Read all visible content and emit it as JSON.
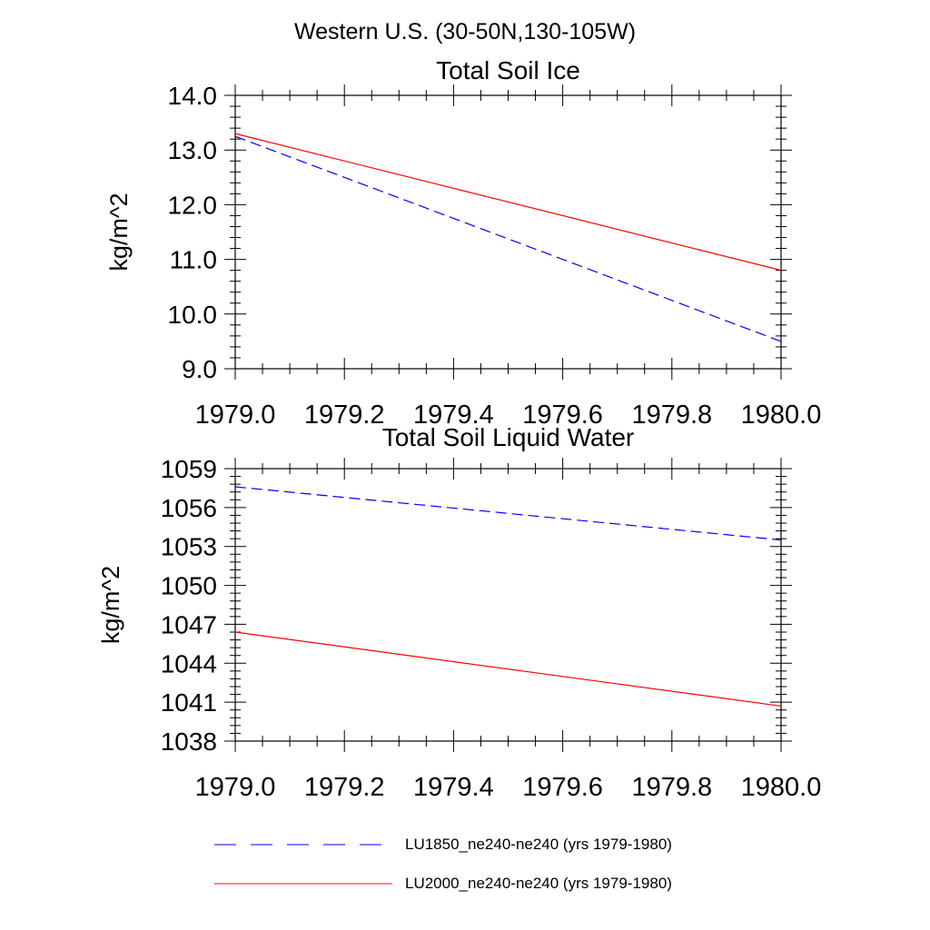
{
  "figure_title": "Western U.S. (30-50N,130-105W)",
  "colors": {
    "series_1850": "#0000ff",
    "series_2000": "#ff0000",
    "axes": "#000000"
  },
  "legend": {
    "placement": "bottom",
    "entries": [
      {
        "label": "LU1850_ne240-ne240 (yrs 1979-1980)",
        "color": "#0000ff",
        "style": "dashed"
      },
      {
        "label": "LU2000_ne240-ne240 (yrs 1979-1980)",
        "color": "#ff0000",
        "style": "solid"
      }
    ]
  },
  "chart_data": [
    {
      "type": "line",
      "title": "Total Soil Ice",
      "xlabel": "",
      "ylabel": "kg/m^2",
      "xlim": [
        1979.0,
        1980.0
      ],
      "ylim": [
        9.0,
        14.0
      ],
      "xticks": [
        "1979.0",
        "1979.2",
        "1979.4",
        "1979.6",
        "1979.8",
        "1980.0"
      ],
      "yticks": [
        "9.0",
        "10.0",
        "11.0",
        "12.0",
        "13.0",
        "14.0"
      ],
      "x": [
        1979.0,
        1980.0
      ],
      "series": [
        {
          "name": "LU1850_ne240-ne240 (yrs 1979-1980)",
          "values": [
            13.25,
            9.5
          ],
          "color": "#0000ff",
          "style": "dashed"
        },
        {
          "name": "LU2000_ne240-ne240 (yrs 1979-1980)",
          "values": [
            13.3,
            10.8
          ],
          "color": "#ff0000",
          "style": "solid"
        }
      ],
      "grid": false
    },
    {
      "type": "line",
      "title": "Total Soil Liquid Water",
      "xlabel": "",
      "ylabel": "kg/m^2",
      "xlim": [
        1979.0,
        1980.0
      ],
      "ylim": [
        1038,
        1059
      ],
      "xticks": [
        "1979.0",
        "1979.2",
        "1979.4",
        "1979.6",
        "1979.8",
        "1980.0"
      ],
      "yticks": [
        "1038",
        "1041",
        "1044",
        "1047",
        "1050",
        "1053",
        "1056",
        "1059"
      ],
      "x": [
        1979.0,
        1980.0
      ],
      "series": [
        {
          "name": "LU1850_ne240-ne240 (yrs 1979-1980)",
          "values": [
            1057.6,
            1053.5
          ],
          "color": "#0000ff",
          "style": "dashed"
        },
        {
          "name": "LU2000_ne240-ne240 (yrs 1979-1980)",
          "values": [
            1046.4,
            1040.7
          ],
          "color": "#ff0000",
          "style": "solid"
        }
      ],
      "grid": false
    }
  ]
}
